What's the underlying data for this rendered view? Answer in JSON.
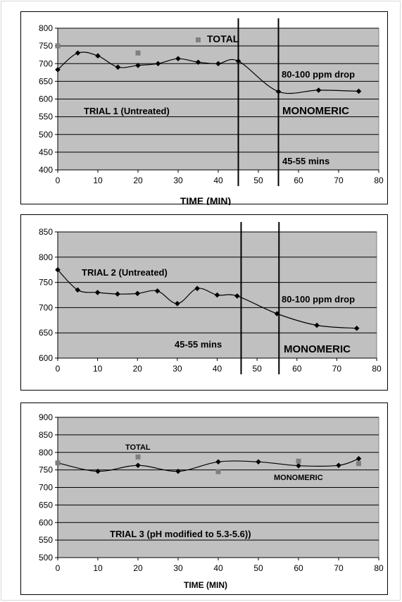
{
  "chart_data": [
    {
      "type": "line",
      "ylim": [
        400,
        800
      ],
      "xlim": [
        0,
        80
      ],
      "yticks": [
        400,
        450,
        500,
        550,
        600,
        650,
        700,
        750,
        800
      ],
      "xticks": [
        0,
        10,
        20,
        30,
        40,
        50,
        60,
        70,
        80
      ],
      "xlabel": "TIME (MIN)",
      "ylabel": "",
      "grid": true,
      "series": [
        {
          "name": "MONOMERIC",
          "marker": "diamond",
          "color": "#000000",
          "x": [
            0,
            5,
            10,
            15,
            20,
            25,
            30,
            35,
            40,
            45,
            55,
            65,
            75
          ],
          "y": [
            683,
            730,
            722,
            690,
            695,
            700,
            714,
            704,
            700,
            707,
            621,
            625,
            622
          ]
        },
        {
          "name": "TOTAL",
          "marker": "square",
          "color": "#7f7f7f",
          "x": [
            0,
            20,
            35
          ],
          "y": [
            750,
            730,
            767
          ]
        }
      ],
      "vlines": [
        45,
        55
      ],
      "annotations": [
        {
          "id": "a1",
          "text": "TOTAL"
        },
        {
          "id": "a2",
          "text": "TRIAL 1 (Untreated)"
        },
        {
          "id": "a3",
          "text": "80-100 ppm drop"
        },
        {
          "id": "a4",
          "text": "MONOMERIC"
        },
        {
          "id": "a5",
          "text": "45-55 mins"
        }
      ]
    },
    {
      "type": "line",
      "ylim": [
        600,
        850
      ],
      "xlim": [
        0,
        80
      ],
      "yticks": [
        600,
        650,
        700,
        750,
        800,
        850
      ],
      "xticks": [
        0,
        10,
        20,
        30,
        40,
        50,
        60,
        70,
        80
      ],
      "xlabel": "",
      "ylabel": "",
      "grid": true,
      "series": [
        {
          "name": "MONOMERIC",
          "marker": "diamond",
          "color": "#000000",
          "x": [
            0,
            5,
            10,
            15,
            20,
            25,
            30,
            35,
            40,
            45,
            55,
            65,
            75
          ],
          "y": [
            775,
            735,
            730,
            727,
            728,
            733,
            708,
            738,
            725,
            723,
            688,
            665,
            659
          ]
        }
      ],
      "vlines": [
        46,
        55.5
      ],
      "annotations": [
        {
          "id": "b1",
          "text": "TRIAL 2 (Untreated)"
        },
        {
          "id": "b2",
          "text": "80-100 ppm drop"
        },
        {
          "id": "b3",
          "text": "45-55 mins"
        },
        {
          "id": "b4",
          "text": "MONOMERIC"
        }
      ]
    },
    {
      "type": "line",
      "ylim": [
        500,
        900
      ],
      "xlim": [
        0,
        80
      ],
      "yticks": [
        500,
        550,
        600,
        650,
        700,
        750,
        800,
        850,
        900
      ],
      "xticks": [
        0,
        10,
        20,
        30,
        40,
        50,
        60,
        70,
        80
      ],
      "xlabel": "TIME (MIN)",
      "ylabel": "",
      "grid": true,
      "series": [
        {
          "name": "MONOMERIC",
          "marker": "diamond",
          "color": "#000000",
          "x": [
            0,
            10,
            20,
            30,
            40,
            50,
            60,
            70,
            75
          ],
          "y": [
            770,
            746,
            763,
            746,
            773,
            773,
            762,
            763,
            782
          ]
        },
        {
          "name": "TOTAL",
          "marker": "square",
          "color": "#7f7f7f",
          "x": [
            0,
            20,
            40,
            60,
            75
          ],
          "y": [
            770,
            787,
            745,
            775,
            768
          ]
        }
      ],
      "vlines": [],
      "annotations": [
        {
          "id": "c1",
          "text": "TOTAL"
        },
        {
          "id": "c2",
          "text": "MONOMERIC"
        },
        {
          "id": "c3",
          "text": "TRIAL 3 (pH modified to 5.3-5.6))"
        }
      ]
    }
  ]
}
